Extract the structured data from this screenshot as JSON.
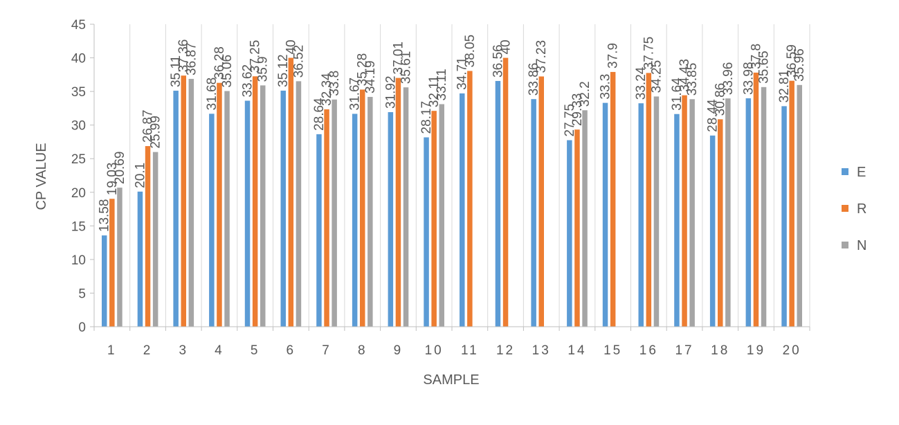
{
  "chart_data": {
    "type": "bar",
    "xlabel": "SAMPLE",
    "ylabel": "CP VALUE",
    "ylim": [
      0,
      45
    ],
    "yticks": [
      0,
      5,
      10,
      15,
      20,
      25,
      30,
      35,
      40,
      45
    ],
    "gridlines": "vertical",
    "legend_position": "right",
    "categories": [
      "1",
      "2",
      "3",
      "4",
      "5",
      "6",
      "7",
      "8",
      "9",
      "10",
      "11",
      "12",
      "13",
      "14",
      "15",
      "16",
      "17",
      "18",
      "19",
      "20"
    ],
    "series": [
      {
        "name": "E",
        "color": "#5B9BD5",
        "values": [
          13.58,
          20.1,
          35.11,
          31.68,
          33.62,
          35.12,
          28.64,
          31.67,
          31.92,
          28.17,
          34.71,
          36.56,
          33.86,
          27.75,
          33.3,
          33.24,
          31.64,
          28.44,
          33.98,
          32.81
        ],
        "labels": [
          "13.58",
          "20.1",
          "35.11",
          "31.68",
          "33.62",
          "35.12",
          "28.64",
          "31.67",
          "31.92",
          "28.17",
          "34.71",
          "36.56",
          "33.86",
          "27.75",
          "33.3",
          "33.24",
          "31.64",
          "28.44",
          "33.98",
          "32.81"
        ]
      },
      {
        "name": "R",
        "color": "#ED7D31",
        "values": [
          19.03,
          26.87,
          37.36,
          36.28,
          37.25,
          40,
          32.34,
          35.28,
          37.01,
          32.11,
          38.05,
          40,
          37.23,
          29.33,
          37.9,
          37.75,
          34.43,
          30.86,
          37.8,
          36.59
        ],
        "labels": [
          "19.03",
          "26.87",
          "37.36",
          "36.28",
          "37.25",
          "40",
          "32.34",
          "35.28",
          "37.01",
          "32.11",
          "38.05",
          "40",
          "37.23",
          "29.33",
          "37.9",
          "37.75",
          "34.43",
          "30.86",
          "37.8",
          "36.59"
        ]
      },
      {
        "name": "N",
        "color": "#A5A5A5",
        "values": [
          20.69,
          25.99,
          36.87,
          35.06,
          35.9,
          36.52,
          33.8,
          34.19,
          35.61,
          33.11,
          null,
          null,
          null,
          32.2,
          null,
          34.25,
          33.85,
          33.96,
          35.65,
          35.96
        ],
        "labels": [
          "20.69",
          "25.99",
          "36.87",
          "35.06",
          "35.9",
          "36.52",
          "33.8",
          "34.19",
          "35.61",
          "33.11",
          "",
          "",
          "",
          "32.2",
          "",
          "34.25",
          "33.85",
          "33.96",
          "35.65",
          "35.96"
        ]
      }
    ]
  }
}
